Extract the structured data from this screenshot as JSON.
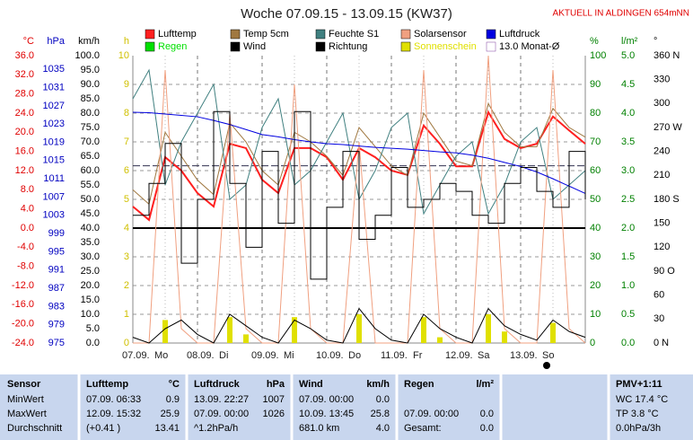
{
  "chart_data": {
    "type": "line",
    "title": "Woche 07.09.15 - 13.09.15 (KW37)",
    "subtitle": "AKTUELL IN ALDINGEN 654mNN",
    "days": [
      {
        "date": "07.09.",
        "day": "Mo"
      },
      {
        "date": "08.09.",
        "day": "Di"
      },
      {
        "date": "09.09.",
        "day": "Mi"
      },
      {
        "date": "10.09.",
        "day": "Do"
      },
      {
        "date": "11.09.",
        "day": "Fr"
      },
      {
        "date": "12.09.",
        "day": "Sa"
      },
      {
        "date": "13.09.",
        "day": "So"
      }
    ],
    "axes": [
      {
        "unit": "°C",
        "color": "#e00000",
        "lim": [
          -24,
          36
        ],
        "ticks": [
          {
            "value": 36,
            "label": "36.0"
          },
          {
            "value": 32,
            "label": "32.0"
          },
          {
            "value": 28,
            "label": "28.0"
          },
          {
            "value": 24,
            "label": "24.0"
          },
          {
            "value": 20,
            "label": "20.0"
          },
          {
            "value": 16,
            "label": "16.0"
          },
          {
            "value": 12,
            "label": "12.0"
          },
          {
            "value": 8,
            "label": "8.0"
          },
          {
            "value": 4,
            "label": "4.0"
          },
          {
            "value": 0,
            "label": "0.0"
          },
          {
            "value": -4,
            "label": "-4.0"
          },
          {
            "value": -8,
            "label": "-8.0"
          },
          {
            "value": -12,
            "label": "-12.0"
          },
          {
            "value": -16,
            "label": "-16.0"
          },
          {
            "value": -20,
            "label": "-20.0"
          },
          {
            "value": -24,
            "label": "-24.0"
          }
        ]
      },
      {
        "unit": "hPa",
        "color": "#0000c0",
        "lim": [
          975,
          1038
        ],
        "ticks": [
          1035,
          1031,
          1027,
          1023,
          1019,
          1015,
          1011,
          1007,
          1003,
          999,
          995,
          991,
          987,
          983,
          979,
          975
        ]
      },
      {
        "unit": "km/h",
        "color": "#000000",
        "lim": [
          0,
          100
        ],
        "ticks": [
          {
            "value": 100,
            "label": "100.0"
          },
          {
            "value": 95,
            "label": "95.0"
          },
          {
            "value": 90,
            "label": "90.0"
          },
          {
            "value": 85,
            "label": "85.0"
          },
          {
            "value": 80,
            "label": "80.0"
          },
          {
            "value": 75,
            "label": "75.0"
          },
          {
            "value": 70,
            "label": "70.0"
          },
          {
            "value": 65,
            "label": "65.0"
          },
          {
            "value": 60,
            "label": "60.0"
          },
          {
            "value": 55,
            "label": "55.0"
          },
          {
            "value": 50,
            "label": "50.0"
          },
          {
            "value": 45,
            "label": "45.0"
          },
          {
            "value": 40,
            "label": "40.0"
          },
          {
            "value": 35,
            "label": "35.0"
          },
          {
            "value": 30,
            "label": "30.0"
          },
          {
            "value": 25,
            "label": "25.0"
          },
          {
            "value": 20,
            "label": "20.0"
          },
          {
            "value": 15,
            "label": "15.0"
          },
          {
            "value": 10,
            "label": "10.0"
          },
          {
            "value": 5,
            "label": "5.0"
          },
          {
            "value": 0,
            "label": "0.0"
          }
        ]
      },
      {
        "unit": "h",
        "color": "#d0c000",
        "lim": [
          0,
          10
        ],
        "ticks": [
          10,
          9,
          8,
          7,
          6,
          5,
          4,
          3,
          2,
          1,
          0
        ],
        "grid": true
      },
      {
        "unit": "%",
        "color": "#008000",
        "lim": [
          0,
          100
        ],
        "ticks": [
          100,
          90,
          80,
          70,
          60,
          50,
          40,
          30,
          20,
          10,
          0
        ]
      },
      {
        "unit": "l/m²",
        "color": "#008000",
        "lim": [
          0,
          5
        ],
        "ticks": [
          {
            "value": 5,
            "label": "5.0"
          },
          {
            "value": 4.5,
            "label": "4.5"
          },
          {
            "value": 4,
            "label": "4.0"
          },
          {
            "value": 3.5,
            "label": "3.5"
          },
          {
            "value": 3,
            "label": "3.0"
          },
          {
            "value": 2.5,
            "label": "2.5"
          },
          {
            "value": 2,
            "label": "2.0"
          },
          {
            "value": 1.5,
            "label": "1.5"
          },
          {
            "value": 1,
            "label": "1.0"
          },
          {
            "value": 0.5,
            "label": "0.5"
          },
          {
            "value": 0,
            "label": "0.0"
          }
        ]
      },
      {
        "unit": "°",
        "color": "#000000",
        "lim": [
          0,
          360
        ],
        "ticks": [
          {
            "value": 360,
            "label": "360 N"
          },
          {
            "value": 330,
            "label": "330"
          },
          {
            "value": 300,
            "label": "300"
          },
          {
            "value": 270,
            "label": "270 W"
          },
          {
            "value": 240,
            "label": "240"
          },
          {
            "value": 210,
            "label": "210"
          },
          {
            "value": 180,
            "label": "180 S"
          },
          {
            "value": 150,
            "label": "150"
          },
          {
            "value": 120,
            "label": "120"
          },
          {
            "value": 90,
            "label": "90 O"
          },
          {
            "value": 60,
            "label": "60"
          },
          {
            "value": 30,
            "label": "30"
          },
          {
            "value": 0,
            "label": "0 N"
          }
        ]
      }
    ],
    "series": [
      {
        "name": "Lufttemp",
        "color": "#ff2020",
        "axis": "°C",
        "kind": "line",
        "width": 2,
        "values": [
          4.5,
          1.7,
          14.8,
          12.0,
          7.3,
          4.5,
          17.6,
          16.7,
          10.1,
          7.3,
          16.7,
          16.7,
          14.8,
          10.1,
          16.7,
          14.8,
          12.0,
          11.1,
          21.4,
          17.6,
          12.9,
          12.9,
          24.2,
          18.6,
          16.7,
          17.6,
          23.3,
          20.4,
          17.6
        ]
      },
      {
        "name": "Temp 5cm",
        "color": "#a07840",
        "axis": "°C",
        "kind": "line",
        "width": 1,
        "values": [
          8,
          5,
          20,
          15,
          10,
          7,
          22,
          18,
          12,
          9,
          20,
          18,
          15,
          11,
          21,
          17,
          13,
          11,
          24,
          19,
          14,
          13,
          26,
          20,
          17,
          17,
          25,
          21,
          19
        ]
      },
      {
        "name": "Feuchte S1",
        "color": "#408080",
        "axis": "%",
        "kind": "line",
        "width": 1,
        "values": [
          85,
          95,
          55,
          70,
          80,
          90,
          50,
          55,
          75,
          85,
          55,
          60,
          70,
          80,
          50,
          60,
          75,
          80,
          45,
          55,
          65,
          70,
          45,
          55,
          70,
          75,
          50,
          55,
          60
        ]
      },
      {
        "name": "Solarsensor",
        "color": "#f0a080",
        "axis": "%",
        "kind": "line",
        "width": 1,
        "values": [
          0,
          0,
          95,
          5,
          0,
          0,
          80,
          5,
          0,
          0,
          90,
          5,
          0,
          0,
          70,
          0,
          0,
          0,
          95,
          5,
          0,
          0,
          100,
          5,
          0,
          0,
          95,
          5,
          0
        ]
      },
      {
        "name": "Luftdruck",
        "color": "#0000e0",
        "axis": "hPa",
        "kind": "line",
        "width": 1,
        "values": [
          1025.6,
          1025.5,
          1025.2,
          1024.9,
          1024.6,
          1023.8,
          1022.9,
          1021.8,
          1020.7,
          1020.2,
          1019.6,
          1019.1,
          1018.7,
          1018.5,
          1018.2,
          1017.9,
          1017.7,
          1017.5,
          1017.2,
          1016.9,
          1016.7,
          1016.2,
          1015.5,
          1014.6,
          1013.7,
          1012.5,
          1011.0,
          1009.4,
          1007.8
        ]
      },
      {
        "name": "Regen",
        "color": "#00e000",
        "axis": "l/m²",
        "kind": "bar",
        "values": [
          0,
          0,
          0,
          0,
          0,
          0,
          0,
          0,
          0,
          0,
          0,
          0,
          0,
          0,
          0,
          0,
          0,
          0,
          0,
          0,
          0,
          0,
          0,
          0,
          0,
          0,
          0,
          0,
          0
        ]
      },
      {
        "name": "Wind",
        "color": "#000000",
        "axis": "km/h",
        "kind": "line",
        "width": 1,
        "values": [
          2,
          0,
          5,
          8,
          3,
          0,
          10,
          6,
          2,
          0,
          8,
          5,
          1,
          0,
          12,
          5,
          1,
          0,
          10,
          5,
          2,
          0,
          12,
          6,
          3,
          1,
          8,
          4,
          2
        ]
      },
      {
        "name": "Richtung",
        "color": "#000000",
        "axis": "°",
        "kind": "step",
        "width": 1,
        "values": [
          160,
          200,
          250,
          100,
          180,
          290,
          200,
          120,
          240,
          150,
          290,
          80,
          170,
          240,
          130,
          160,
          220,
          170,
          180,
          200,
          190,
          160,
          150,
          200,
          220,
          190,
          170,
          240,
          180
        ]
      },
      {
        "name": "Sonnenschein",
        "color": "#e0e000",
        "axis": "h",
        "kind": "bar",
        "values": [
          0,
          0,
          0.8,
          0,
          0,
          0,
          0.9,
          0.3,
          0,
          0,
          0.9,
          0,
          0,
          0,
          1.0,
          0,
          0,
          0,
          0.9,
          0.2,
          0,
          0,
          1.0,
          0.4,
          0,
          0,
          0.7,
          0,
          0
        ]
      },
      {
        "name": "13.0 Monat-Ø",
        "color": "#8040a0",
        "axis": "°C",
        "kind": "hline",
        "value": 13.0
      }
    ]
  },
  "table": {
    "header": [
      [
        "Sensor"
      ],
      [
        "Lufttemp",
        "°C"
      ],
      [
        "Luftdruck",
        "hPa"
      ],
      [
        "Wind",
        "km/h"
      ],
      [
        "Regen",
        "l/m²"
      ],
      [
        "PMV+1:11"
      ]
    ],
    "rows": [
      [
        [
          "MinWert"
        ],
        [
          "07.09.  06:33",
          "0.9"
        ],
        [
          "13.09.  22:27",
          "1007"
        ],
        [
          "07.09.  00:00",
          "0.0"
        ],
        [],
        [
          "WC 17.4 °C"
        ]
      ],
      [
        [
          "MaxWert"
        ],
        [
          "12.09.  15:32",
          "25.9"
        ],
        [
          "07.09.  00:00",
          "1026"
        ],
        [
          "10.09.  13:45",
          "25.8"
        ],
        [
          "07.09.  00:00",
          "0.0"
        ],
        [
          "TP 3.8 °C"
        ]
      ],
      [
        [
          "Durchschnitt"
        ],
        [
          "(+0.41 )",
          "13.41"
        ],
        [
          "^1.2hPa/h"
        ],
        [
          "681.0 km",
          "4.0"
        ],
        [
          "Gesamt:",
          "0.0"
        ],
        [
          "0.0hPa/3h"
        ]
      ]
    ]
  }
}
